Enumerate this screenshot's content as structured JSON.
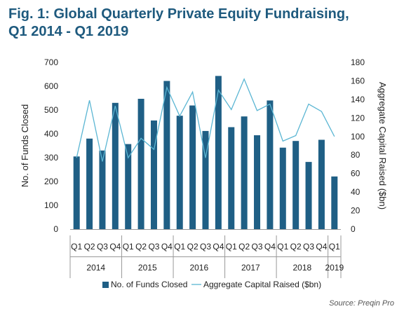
{
  "figure": {
    "title_line1": "Fig. 1: Global Quarterly Private Equity Fundraising,",
    "title_line2": "Q1 2014 - Q1 2019",
    "source": "Source: Preqin Pro"
  },
  "colors": {
    "title": "#1e5a7e",
    "bars": "#1f5f85",
    "line": "#5bb6d3",
    "axis": "#999999"
  },
  "chart_data": {
    "type": "bar",
    "categories": [
      "Q1",
      "Q2",
      "Q3",
      "Q4",
      "Q1",
      "Q2",
      "Q3",
      "Q4",
      "Q1",
      "Q2",
      "Q3",
      "Q4",
      "Q1",
      "Q2",
      "Q3",
      "Q4",
      "Q1",
      "Q2",
      "Q3",
      "Q4",
      "Q1"
    ],
    "year_groups": [
      {
        "label": "2014",
        "count": 4
      },
      {
        "label": "2015",
        "count": 4
      },
      {
        "label": "2016",
        "count": 4
      },
      {
        "label": "2017",
        "count": 4
      },
      {
        "label": "2018",
        "count": 4
      },
      {
        "label": "2019",
        "count": 1
      }
    ],
    "series": [
      {
        "name": "No. of Funds Closed",
        "kind": "bar",
        "axis": "left",
        "values": [
          305,
          380,
          330,
          530,
          357,
          547,
          456,
          622,
          476,
          519,
          412,
          643,
          428,
          473,
          394,
          540,
          342,
          370,
          282,
          375,
          221
        ]
      },
      {
        "name": "Aggregate Capital Raised ($bn)",
        "kind": "line",
        "axis": "right",
        "values": [
          77,
          139,
          73,
          133,
          77,
          98,
          86,
          153,
          122,
          148,
          77,
          150,
          129,
          162,
          128,
          135,
          95,
          101,
          135,
          127,
          100
        ]
      }
    ],
    "ylabel": "No. of Funds Closed",
    "y2label": "Aggregate Capital Raised ($bn)",
    "ylim": [
      0,
      700
    ],
    "y2lim": [
      0,
      180
    ],
    "yticks": [
      0,
      100,
      200,
      300,
      400,
      500,
      600,
      700
    ],
    "y2ticks": [
      0,
      20,
      40,
      60,
      80,
      100,
      120,
      140,
      160,
      180
    ],
    "legend_position": "bottom",
    "grid": false
  }
}
